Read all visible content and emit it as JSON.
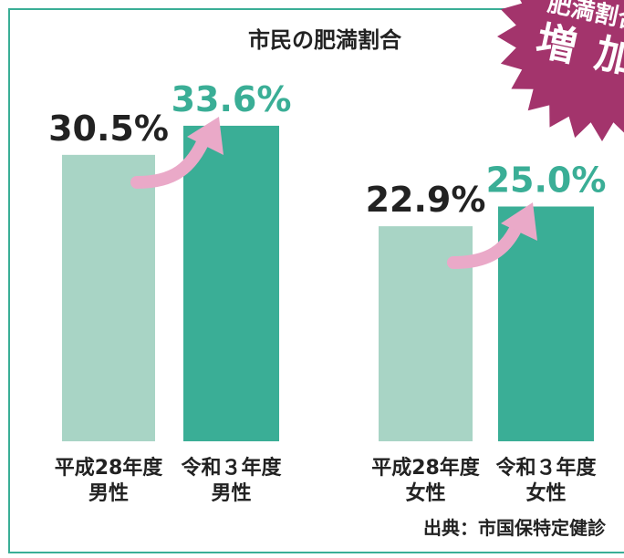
{
  "chart_data": {
    "type": "bar",
    "title": "市民の肥満割合",
    "categories": [
      [
        "平成28年度",
        "男性"
      ],
      [
        "令和３年度",
        "男性"
      ],
      [
        "平成28年度",
        "女性"
      ],
      [
        "令和３年度",
        "女性"
      ]
    ],
    "values": [
      30.5,
      33.6,
      22.9,
      25.0
    ],
    "value_labels": [
      "30.5%",
      "33.6%",
      "22.9%",
      "25.0%"
    ],
    "colors": [
      "#a8d4c5",
      "#3aae96",
      "#a8d4c5",
      "#3aae96"
    ],
    "label_colors": [
      "#222222",
      "#3aae96",
      "#222222",
      "#3aae96"
    ],
    "badge": [
      "肥満割合",
      "増加"
    ],
    "source": "出典：市国保特定健診"
  }
}
